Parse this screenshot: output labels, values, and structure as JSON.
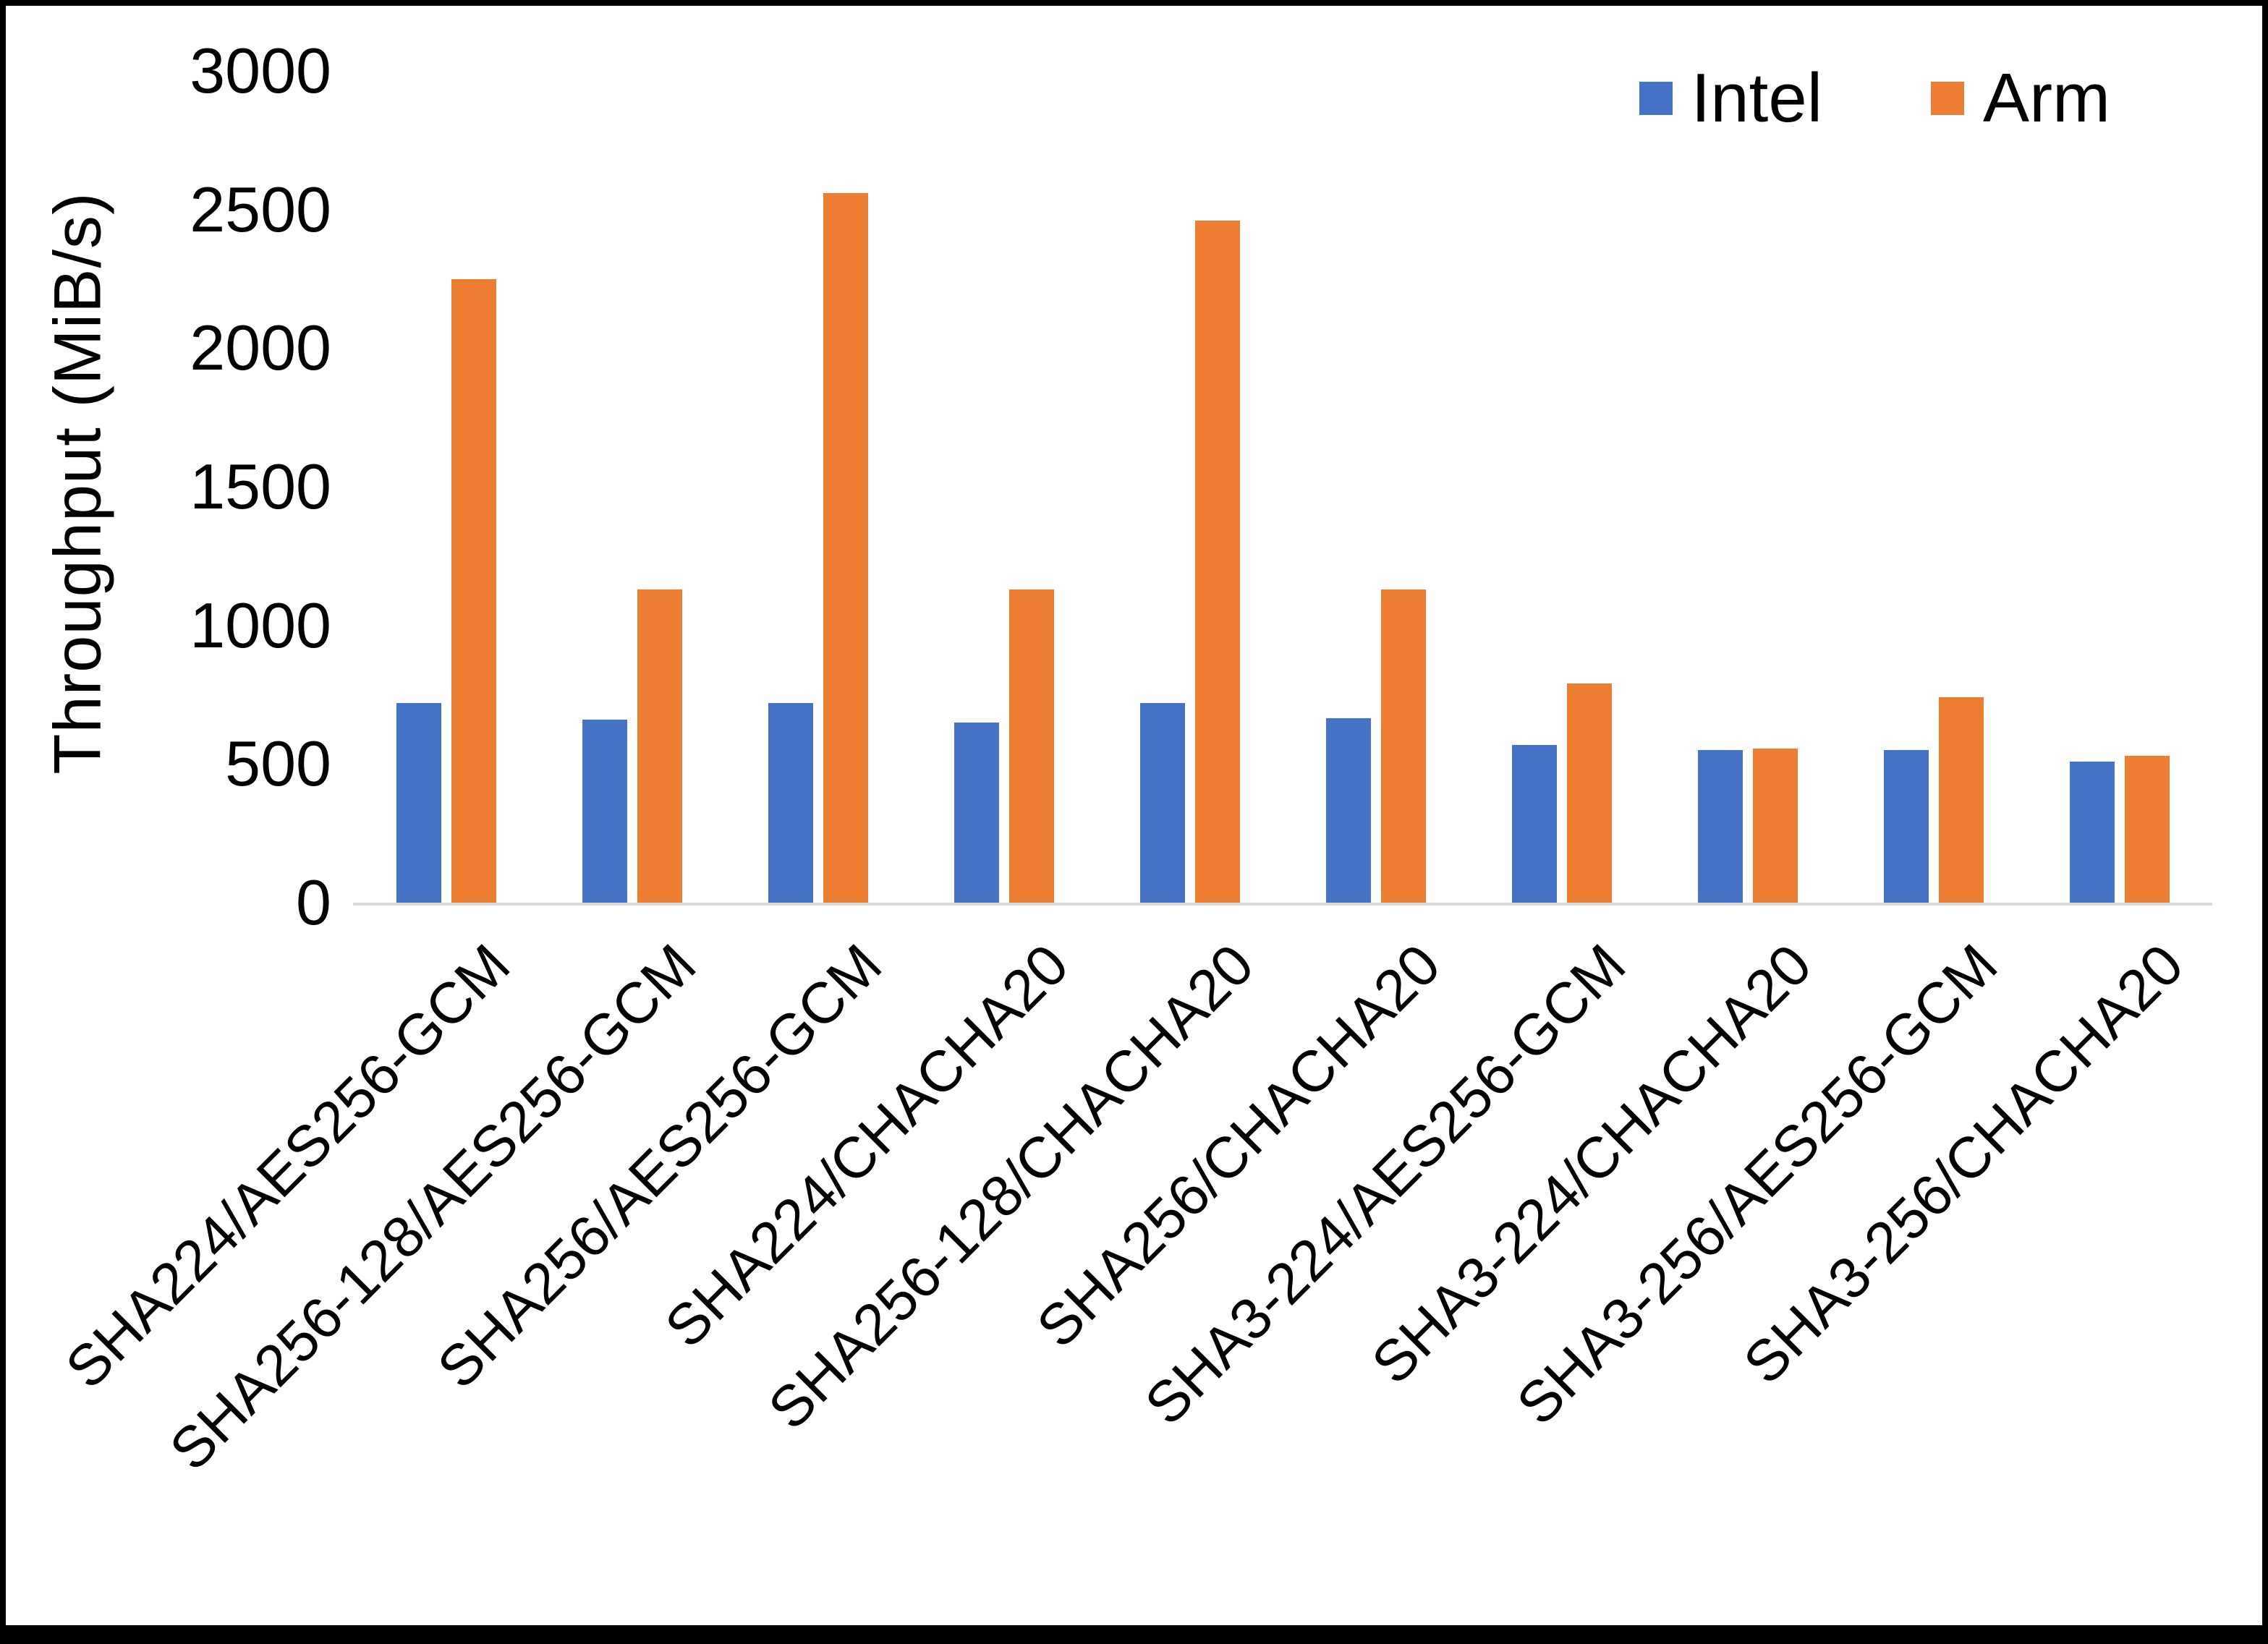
{
  "chart_data": {
    "type": "bar",
    "title": "",
    "xlabel": "",
    "ylabel": "Throughput (MiB/s)",
    "ylim": [
      0,
      3000
    ],
    "yticks": [
      0,
      500,
      1000,
      1500,
      2000,
      2500,
      3000
    ],
    "grid": false,
    "legend_position": "top-right",
    "categories": [
      "SHA224/AES256-GCM",
      "SHA256-128/AES256-GCM",
      "SHA256/AES256-GCM",
      "SHA224/CHACHA20",
      "SHA256-128/CHACHA20",
      "SHA256/CHACHA20",
      "SHA3-224/AES256-GCM",
      "SHA3-224/CHACHA20",
      "SHA3-256/AES256-GCM",
      "SHA3-256/CHACHA20"
    ],
    "series": [
      {
        "name": "Intel",
        "color": "#4472C4",
        "values": [
          720,
          660,
          720,
          650,
          720,
          665,
          570,
          550,
          550,
          510
        ]
      },
      {
        "name": "Arm",
        "color": "#ED7D31",
        "values": [
          2250,
          1130,
          2560,
          1130,
          2460,
          1130,
          790,
          555,
          740,
          530
        ]
      }
    ]
  },
  "colors": {
    "axis_line": "#d9d9d9",
    "text": "#000000",
    "frame_border": "#000000"
  }
}
